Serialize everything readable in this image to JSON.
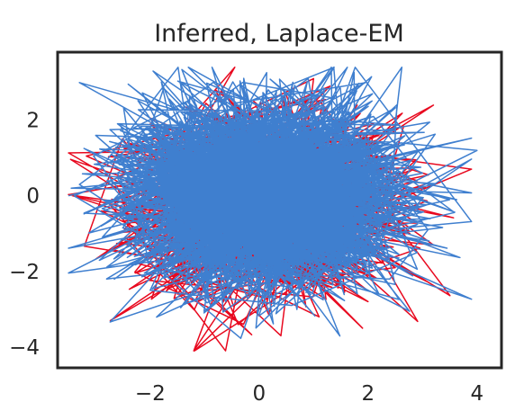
{
  "chart_data": {
    "type": "line",
    "title": "Inferred, Laplace-EM",
    "xlabel": "",
    "ylabel": "",
    "xlim": [
      -3.7,
      4.45
    ],
    "ylim": [
      -4.55,
      3.8
    ],
    "xticks": [
      -2,
      0,
      2,
      4
    ],
    "xtick_labels": [
      "−2",
      "0",
      "2",
      "4"
    ],
    "yticks": [
      -4,
      -2,
      0,
      2
    ],
    "ytick_labels": [
      "−4",
      "−2",
      "0",
      "2"
    ],
    "grid": false,
    "legend": "none",
    "series": [
      {
        "color": "#e8091f",
        "values_description_note": "",
        "points": [
          [
            -2.4,
            1.0
          ],
          [
            2.6,
            0.6
          ],
          [
            -0.5,
            -1.9
          ],
          [
            1.8,
            2.4
          ],
          [
            -1.2,
            -4.1
          ],
          [
            0.3,
            1.7
          ],
          [
            3.2,
            -1.3
          ],
          [
            -2.9,
            -0.4
          ],
          [
            1.1,
            -3.2
          ],
          [
            -0.8,
            2.8
          ],
          [
            2.3,
            -0.6
          ],
          [
            -1.7,
            1.4
          ],
          [
            0.9,
            0.2
          ],
          [
            3.2,
            2.4
          ],
          [
            -2.2,
            -1.8
          ],
          [
            0.1,
            -2.7
          ],
          [
            1.6,
            1.2
          ],
          [
            -0.4,
            -0.9
          ],
          [
            2.9,
            0.4
          ],
          [
            -1.1,
            2.2
          ],
          [
            0.6,
            -1.5
          ],
          [
            2.0,
            -2.8
          ],
          [
            -2.6,
            0.5
          ],
          [
            1.3,
            2.9
          ],
          [
            -0.2,
            0.7
          ],
          [
            2.5,
            -1.9
          ],
          [
            -1.5,
            -2.6
          ],
          [
            0.8,
            1.9
          ],
          [
            3.0,
            -0.1
          ],
          [
            -2.0,
            1.9
          ],
          [
            1.9,
            -3.5
          ],
          [
            -0.7,
            0.3
          ],
          [
            2.2,
            1.6
          ],
          [
            -1.9,
            -0.6
          ],
          [
            0.4,
            -3.7
          ],
          [
            1.0,
            3.1
          ],
          [
            -2.3,
            0.8
          ],
          [
            2.7,
            -1.0
          ],
          [
            -0.1,
            2.5
          ],
          [
            1.5,
            -2.2
          ]
        ]
      },
      {
        "color": "#3f7fcf",
        "points": [
          [
            -3.5,
            0.0
          ],
          [
            -1.0,
            1.0
          ],
          [
            1.0,
            0.0
          ],
          [
            3.0,
            0.6
          ],
          [
            1.0,
            2.0
          ],
          [
            -1.0,
            1.5
          ],
          [
            -3.0,
            1.6
          ],
          [
            -1.5,
            -0.3
          ],
          [
            0.5,
            -1.2
          ],
          [
            2.3,
            -1.4
          ],
          [
            0.5,
            -2.4
          ],
          [
            -1.5,
            -2.0
          ],
          [
            -2.8,
            -2.2
          ],
          [
            -1.2,
            -0.8
          ],
          [
            0.8,
            0.6
          ],
          [
            2.6,
            1.4
          ],
          [
            4.0,
            1.2
          ],
          [
            1.9,
            -0.3
          ],
          [
            0.2,
            2.2
          ],
          [
            -1.3,
            3.4
          ],
          [
            0.4,
            1.0
          ],
          [
            2.9,
            -1.5
          ],
          [
            0.6,
            -2.9
          ],
          [
            -2.0,
            -2.5
          ],
          [
            -0.9,
            0.9
          ],
          [
            2.1,
            2.1
          ],
          [
            2.7,
            1.0
          ],
          [
            0.7,
            0.3
          ],
          [
            -1.6,
            -1.3
          ],
          [
            -3.3,
            0.3
          ],
          [
            -1.4,
            2.3
          ],
          [
            1.7,
            1.2
          ],
          [
            0.0,
            -1.0
          ],
          [
            -0.6,
            -2.0
          ],
          [
            2.4,
            -2.2
          ],
          [
            3.1,
            -0.9
          ],
          [
            1.3,
            2.6
          ],
          [
            -0.3,
            3.0
          ],
          [
            -2.6,
            0.6
          ],
          [
            -1.8,
            -1.9
          ],
          [
            0.2,
            -2.7
          ],
          [
            1.5,
            -1.6
          ],
          [
            0.9,
            3.1
          ],
          [
            -2.9,
            -0.8
          ],
          [
            -0.5,
            1.2
          ],
          [
            2.8,
            0.2
          ],
          [
            1.1,
            -0.7
          ],
          [
            -1.2,
            0.5
          ],
          [
            0.4,
            2.7
          ],
          [
            2.2,
            -2.6
          ]
        ]
      }
    ]
  }
}
